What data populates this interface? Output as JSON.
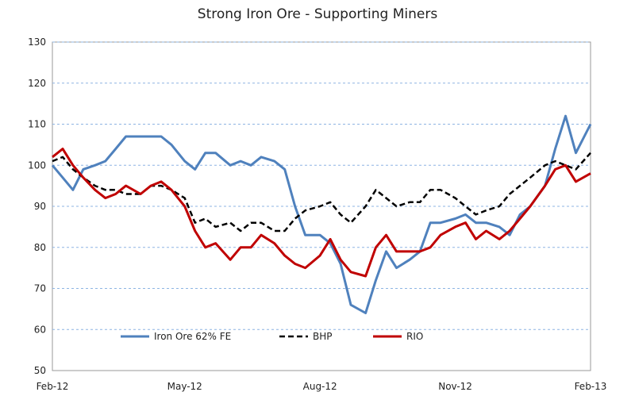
{
  "chart_data": {
    "type": "line",
    "title": "Strong Iron Ore - Supporting Miners",
    "xlabel": "",
    "ylabel": "",
    "ylim": [
      50,
      130
    ],
    "yticks": [
      50,
      60,
      70,
      80,
      90,
      100,
      110,
      120,
      130
    ],
    "xlim": [
      "2012-02-01",
      "2013-02-01"
    ],
    "xticks": [
      {
        "date": "2012-02-01",
        "label": "Feb-12"
      },
      {
        "date": "2012-05-01",
        "label": "May-12"
      },
      {
        "date": "2012-08-01",
        "label": "Aug-12"
      },
      {
        "date": "2012-11-01",
        "label": "Nov-12"
      },
      {
        "date": "2013-02-01",
        "label": "Feb-13"
      }
    ],
    "grid": "horizontal dashed",
    "legend_position": "bottom inside plot",
    "series": [
      {
        "name": "Iron Ore 62% FE",
        "color": "#4f81bd",
        "style": "solid",
        "x": [
          "2012-02-01",
          "2012-02-08",
          "2012-02-15",
          "2012-02-22",
          "2012-03-01",
          "2012-03-08",
          "2012-03-15",
          "2012-03-22",
          "2012-04-01",
          "2012-04-08",
          "2012-04-15",
          "2012-04-22",
          "2012-05-01",
          "2012-05-08",
          "2012-05-15",
          "2012-05-22",
          "2012-06-01",
          "2012-06-08",
          "2012-06-15",
          "2012-06-22",
          "2012-07-01",
          "2012-07-08",
          "2012-07-15",
          "2012-07-22",
          "2012-08-01",
          "2012-08-08",
          "2012-08-15",
          "2012-08-22",
          "2012-09-01",
          "2012-09-08",
          "2012-09-15",
          "2012-09-22",
          "2012-10-01",
          "2012-10-08",
          "2012-10-15",
          "2012-10-22",
          "2012-11-01",
          "2012-11-08",
          "2012-11-15",
          "2012-11-22",
          "2012-12-01",
          "2012-12-08",
          "2012-12-15",
          "2012-12-22",
          "2013-01-01",
          "2013-01-08",
          "2013-01-15",
          "2013-01-22",
          "2013-02-01"
        ],
        "y": [
          100,
          97,
          94,
          99,
          100,
          101,
          104,
          107,
          107,
          107,
          107,
          105,
          101,
          99,
          103,
          103,
          100,
          101,
          100,
          102,
          101,
          99,
          90,
          83,
          83,
          81,
          76,
          66,
          64,
          72,
          79,
          75,
          77,
          79,
          86,
          86,
          87,
          88,
          86,
          86,
          85,
          83,
          88,
          90,
          95,
          104,
          112,
          103,
          110
        ]
      },
      {
        "name": "BHP",
        "color": "#000000",
        "style": "dashed",
        "x": [
          "2012-02-01",
          "2012-02-08",
          "2012-02-15",
          "2012-02-22",
          "2012-03-01",
          "2012-03-08",
          "2012-03-15",
          "2012-03-22",
          "2012-04-01",
          "2012-04-08",
          "2012-04-15",
          "2012-04-22",
          "2012-05-01",
          "2012-05-08",
          "2012-05-15",
          "2012-05-22",
          "2012-06-01",
          "2012-06-08",
          "2012-06-15",
          "2012-06-22",
          "2012-07-01",
          "2012-07-08",
          "2012-07-15",
          "2012-07-22",
          "2012-08-01",
          "2012-08-08",
          "2012-08-15",
          "2012-08-22",
          "2012-09-01",
          "2012-09-08",
          "2012-09-15",
          "2012-09-22",
          "2012-10-01",
          "2012-10-08",
          "2012-10-15",
          "2012-10-22",
          "2012-11-01",
          "2012-11-08",
          "2012-11-15",
          "2012-11-22",
          "2012-12-01",
          "2012-12-08",
          "2012-12-15",
          "2012-12-22",
          "2013-01-01",
          "2013-01-08",
          "2013-01-15",
          "2013-01-22",
          "2013-02-01"
        ],
        "y": [
          101,
          102,
          99,
          97,
          95,
          94,
          94,
          93,
          93,
          95,
          95,
          94,
          92,
          86,
          87,
          85,
          86,
          84,
          86,
          86,
          84,
          84,
          87,
          89,
          90,
          91,
          88,
          86,
          90,
          94,
          92,
          90,
          91,
          91,
          94,
          94,
          92,
          90,
          88,
          89,
          90,
          93,
          95,
          97,
          100,
          101,
          100,
          99,
          103
        ]
      },
      {
        "name": "RIO",
        "color": "#c00000",
        "style": "solid",
        "x": [
          "2012-02-01",
          "2012-02-08",
          "2012-02-15",
          "2012-02-22",
          "2012-03-01",
          "2012-03-08",
          "2012-03-15",
          "2012-03-22",
          "2012-04-01",
          "2012-04-08",
          "2012-04-15",
          "2012-04-22",
          "2012-05-01",
          "2012-05-08",
          "2012-05-15",
          "2012-05-22",
          "2012-06-01",
          "2012-06-08",
          "2012-06-15",
          "2012-06-22",
          "2012-07-01",
          "2012-07-08",
          "2012-07-15",
          "2012-07-22",
          "2012-08-01",
          "2012-08-08",
          "2012-08-15",
          "2012-08-22",
          "2012-09-01",
          "2012-09-08",
          "2012-09-15",
          "2012-09-22",
          "2012-10-01",
          "2012-10-08",
          "2012-10-15",
          "2012-10-22",
          "2012-11-01",
          "2012-11-08",
          "2012-11-15",
          "2012-11-22",
          "2012-12-01",
          "2012-12-08",
          "2012-12-15",
          "2012-12-22",
          "2013-01-01",
          "2013-01-08",
          "2013-01-15",
          "2013-01-22",
          "2013-02-01"
        ],
        "y": [
          102,
          104,
          100,
          97,
          94,
          92,
          93,
          95,
          93,
          95,
          96,
          94,
          90,
          84,
          80,
          81,
          77,
          80,
          80,
          83,
          81,
          78,
          76,
          75,
          78,
          82,
          77,
          74,
          73,
          80,
          83,
          79,
          79,
          79,
          80,
          83,
          85,
          86,
          82,
          84,
          82,
          84,
          87,
          90,
          95,
          99,
          100,
          96,
          98
        ]
      }
    ]
  }
}
